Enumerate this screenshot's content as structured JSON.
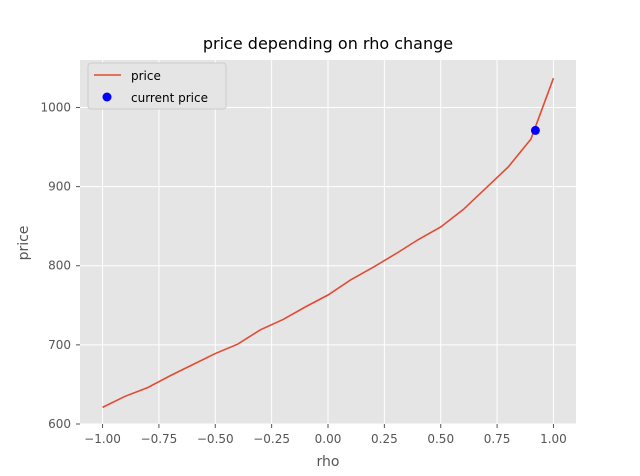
{
  "chart_data": {
    "type": "line",
    "title": "price depending on rho change",
    "xlabel": "rho",
    "ylabel": "price",
    "xlim": [
      -1.1,
      1.1
    ],
    "ylim": [
      600,
      1060
    ],
    "xticks": [
      -1.0,
      -0.75,
      -0.5,
      -0.25,
      0.0,
      0.25,
      0.5,
      0.75,
      1.0
    ],
    "xtick_labels": [
      "−1.00",
      "−0.75",
      "−0.50",
      "−0.25",
      "0.00",
      "0.25",
      "0.50",
      "0.75",
      "1.00"
    ],
    "yticks": [
      600,
      700,
      800,
      900,
      1000
    ],
    "ytick_labels": [
      "600",
      "700",
      "800",
      "900",
      "1000"
    ],
    "grid": true,
    "legend_position": "top-left",
    "series": [
      {
        "name": "price",
        "kind": "line",
        "color": "#e24a33",
        "x": [
          -1.0,
          -0.9,
          -0.8,
          -0.7,
          -0.6,
          -0.5,
          -0.4,
          -0.3,
          -0.2,
          -0.1,
          0.0,
          0.1,
          0.2,
          0.3,
          0.4,
          0.5,
          0.6,
          0.7,
          0.8,
          0.9,
          1.0
        ],
        "y": [
          621,
          635,
          646,
          661,
          675,
          689,
          701,
          719,
          732,
          748,
          763,
          782,
          798,
          815,
          833,
          849,
          871,
          898,
          925,
          960,
          1037
        ]
      },
      {
        "name": "current price",
        "kind": "scatter",
        "color": "#0000ff",
        "x": [
          0.92
        ],
        "y": [
          971
        ]
      }
    ]
  }
}
